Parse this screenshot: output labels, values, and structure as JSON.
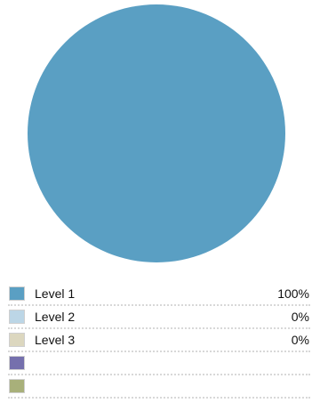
{
  "chart_data": {
    "type": "pie",
    "slices": [
      {
        "label": "Level 1",
        "value": 100,
        "value_label": "100%",
        "color": "#5a9fc3"
      },
      {
        "label": "Level 2",
        "value": 0,
        "value_label": "0%",
        "color": "#bcd6e6"
      },
      {
        "label": "Level 3",
        "value": 0,
        "value_label": "0%",
        "color": "#dcd7bf"
      },
      {
        "label": "",
        "value": null,
        "value_label": "",
        "color": "#7570ad"
      },
      {
        "label": "",
        "value": null,
        "value_label": "",
        "color": "#a8b07a"
      }
    ],
    "legend": {
      "placement": "bottom"
    }
  }
}
